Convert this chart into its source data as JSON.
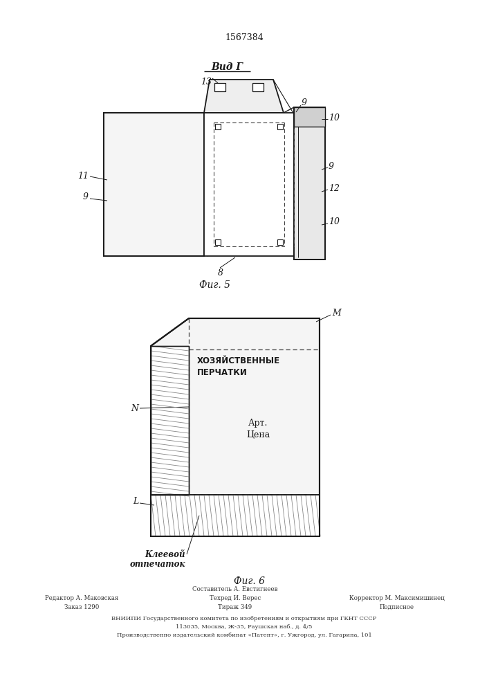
{
  "patent_number": "1567384",
  "fig5_label": "Фиг. 5",
  "fig6_label": "Фиг. 6",
  "vid_g_label": "Вид Г",
  "bg_color": "#ffffff",
  "line_color": "#1a1a1a",
  "dashed_color": "#444444",
  "footer_col1_line1": "Редактор А. Маковская",
  "footer_col1_line2": "Заказ 1290",
  "footer_col2_line1": "Составитель А. Евстигнеев",
  "footer_col2_line2": "Техред И. Верес",
  "footer_col2_line3": "Тираж 349",
  "footer_col3_line1": "Корректор М. Максимишинец",
  "footer_col3_line2": "Подписное",
  "footer_vniiipi": "ВНИИПИ Государственного комитета по изобретениям и открытиям при ГКНТ СССР",
  "footer_addr1": "113035, Москва, Ж-35, Раушская наб., д. 4/5",
  "footer_addr2": "Производственно издательский комбинат «Патент», г. Ужгород, ул. Гагарина, 101"
}
